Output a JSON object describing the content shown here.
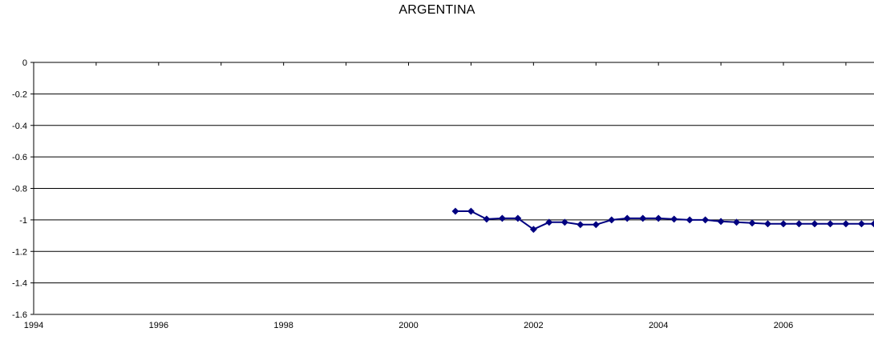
{
  "chart_data": {
    "type": "line",
    "title": "ARGENTINA",
    "xlabel": "",
    "ylabel": "",
    "xlim": [
      1994,
      2007.45
    ],
    "ylim": [
      -1.6,
      0
    ],
    "x_ticks": [
      1994,
      1996,
      1998,
      2000,
      2002,
      2004,
      2006
    ],
    "y_ticks": [
      0,
      -0.2,
      -0.4,
      -0.6,
      -0.8,
      -1,
      -1.2,
      -1.4,
      -1.6
    ],
    "x_tick_labels": [
      "1994",
      "1996",
      "1998",
      "2000",
      "2002",
      "2004",
      "2006"
    ],
    "y_tick_labels": [
      "0",
      "-0.2",
      "-0.4",
      "-0.6",
      "-0.8",
      "-1",
      "-1.2",
      "-1.4",
      "-1.6"
    ],
    "grid": true,
    "legend": "none",
    "series": [
      {
        "color": "#000080",
        "marker": "diamond",
        "x": [
          2000.75,
          2001.0,
          2001.25,
          2001.5,
          2001.75,
          2002.0,
          2002.25,
          2002.5,
          2002.75,
          2003.0,
          2003.25,
          2003.5,
          2003.75,
          2004.0,
          2004.25,
          2004.5,
          2004.75,
          2005.0,
          2005.25,
          2005.5,
          2005.75,
          2006.0,
          2006.25,
          2006.5,
          2006.75,
          2007.0,
          2007.25,
          2007.45
        ],
        "values": [
          -0.945,
          -0.945,
          -0.995,
          -0.99,
          -0.99,
          -1.06,
          -1.015,
          -1.015,
          -1.03,
          -1.03,
          -1.0,
          -0.99,
          -0.99,
          -0.99,
          -0.995,
          -1.0,
          -1.0,
          -1.01,
          -1.015,
          -1.02,
          -1.025,
          -1.025,
          -1.025,
          -1.025,
          -1.025,
          -1.025,
          -1.025,
          -1.025
        ]
      }
    ]
  }
}
